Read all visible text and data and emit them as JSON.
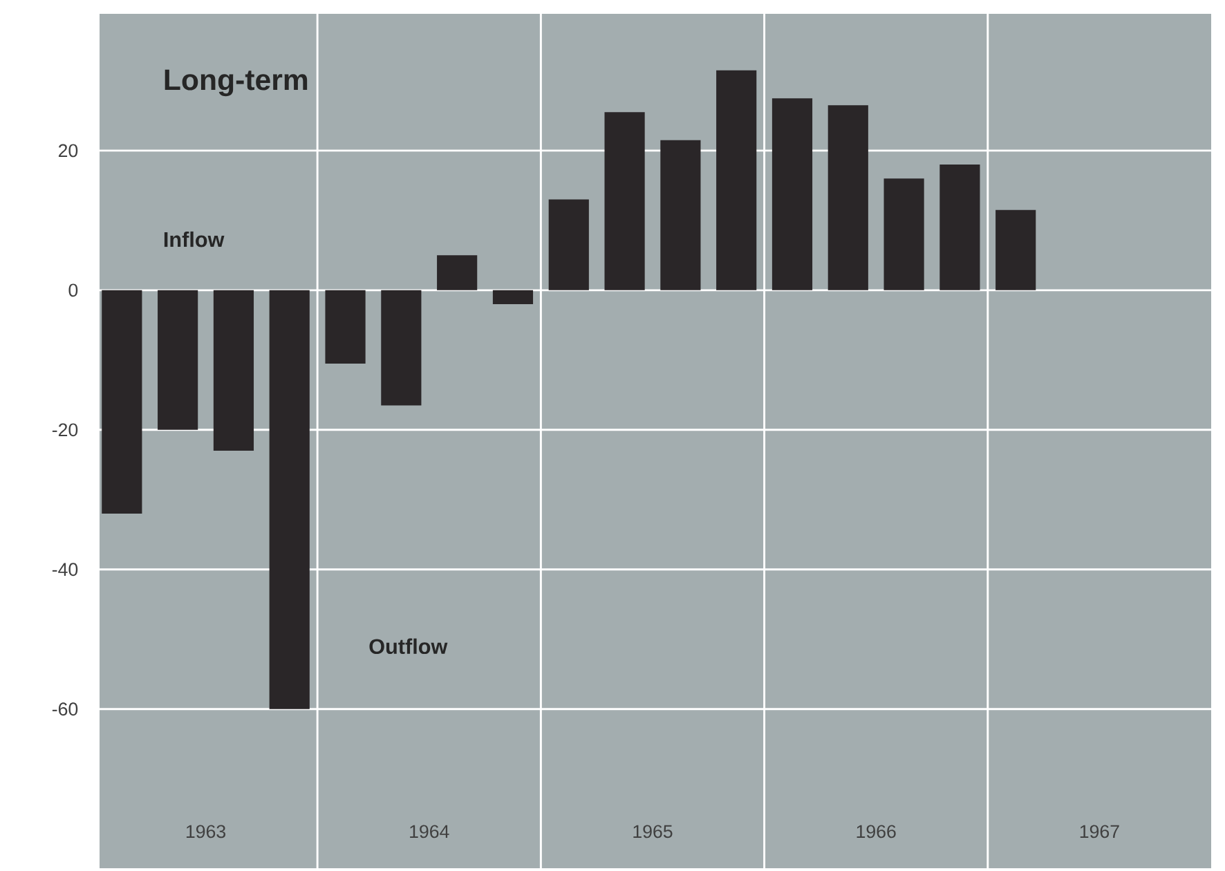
{
  "chart_data": {
    "type": "bar",
    "title": "Long-term",
    "x": [
      1963.125,
      1963.375,
      1963.625,
      1963.875,
      1964.125,
      1964.375,
      1964.625,
      1964.875,
      1965.125,
      1965.375,
      1965.625,
      1965.875,
      1966.125,
      1966.375,
      1966.625,
      1966.875,
      1967.125
    ],
    "values": [
      -32,
      -20,
      -23,
      -60,
      -10.5,
      -16.5,
      5,
      -2,
      13,
      25.5,
      21.5,
      31.5,
      27.5,
      26.5,
      16,
      18,
      11.5
    ],
    "color": "#2a2628",
    "xlim": [
      1963.025,
      1968.0
    ],
    "xticks": [
      {
        "value": 1963.5,
        "label": "1963"
      },
      {
        "value": 1964,
        "label": null
      },
      {
        "value": 1964.5,
        "label": "1964"
      },
      {
        "value": 1965,
        "label": null
      },
      {
        "value": 1965.5,
        "label": "1965"
      },
      {
        "value": 1966,
        "label": null
      },
      {
        "value": 1966.5,
        "label": "1966"
      },
      {
        "value": 1967,
        "label": null
      },
      {
        "value": 1967.5,
        "label": "1967"
      }
    ],
    "ylim": [
      -82.8,
      39.6
    ],
    "yticks": [
      20,
      0,
      -20,
      -40,
      -60
    ],
    "grid": true,
    "annotations": [
      "Inflow",
      "Outflow"
    ]
  }
}
